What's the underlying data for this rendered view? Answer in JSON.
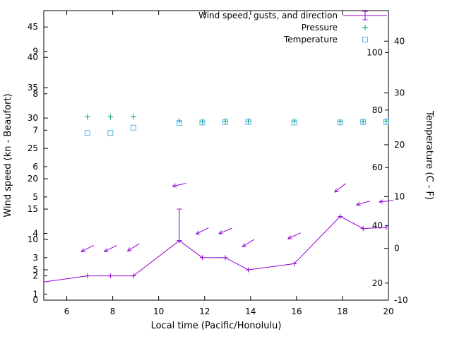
{
  "chart_data": {
    "type": "line",
    "title": "",
    "legend": [
      {
        "label": "Wind speed, gusts, and direction",
        "series": "wind",
        "sample": "line-errorbar"
      },
      {
        "label": "Pressure",
        "series": "pressure",
        "sample": "plus"
      },
      {
        "label": "Temperature",
        "series": "temperature",
        "sample": "open-square"
      }
    ],
    "x_axis": {
      "label": "Local time (Pacific/Honolulu)",
      "min": 5,
      "max": 20,
      "ticks": [
        6,
        8,
        10,
        12,
        14,
        16,
        18,
        20
      ]
    },
    "y_left": {
      "label": "Wind speed (kn - Beaufort)",
      "min": 0,
      "max": 47.7,
      "kn_ticks": [
        0,
        5,
        10,
        15,
        20,
        25,
        30,
        35,
        40,
        45
      ],
      "beaufort_ticks": [
        {
          "label": "1",
          "kn": 1
        },
        {
          "label": "2",
          "kn": 4
        },
        {
          "label": "3",
          "kn": 7
        },
        {
          "label": "4",
          "kn": 11
        },
        {
          "label": "5",
          "kn": 17
        },
        {
          "label": "6",
          "kn": 22
        },
        {
          "label": "7",
          "kn": 28
        },
        {
          "label": "8",
          "kn": 34
        },
        {
          "label": "9",
          "kn": 41
        }
      ]
    },
    "y_right": {
      "label": "Temperature (C - F)",
      "min": -10,
      "max": 45.9,
      "c_ticks": [
        -10,
        0,
        10,
        20,
        30,
        40
      ],
      "f_ticks": [
        {
          "label": "20",
          "c": -6.7
        },
        {
          "label": "40",
          "c": 4.4
        },
        {
          "label": "60",
          "c": 15.6
        },
        {
          "label": "80",
          "c": 26.7
        },
        {
          "label": "100",
          "c": 37.8
        }
      ]
    },
    "colors": {
      "wind": "#9400d3",
      "pressure": "#009e73",
      "temperature": "#56b4e9",
      "axis": "#000000",
      "background": "#ffffff"
    },
    "wind": {
      "line_start": {
        "t": 5.0,
        "kn": 3.0
      },
      "points": [
        {
          "t": 6.9,
          "kn": 4.0
        },
        {
          "t": 7.9,
          "kn": 4.0
        },
        {
          "t": 8.9,
          "kn": 4.0
        },
        {
          "t": 10.9,
          "kn": 9.8,
          "gust": 15.0
        },
        {
          "t": 11.9,
          "kn": 7.0
        },
        {
          "t": 12.9,
          "kn": 7.0
        },
        {
          "t": 13.9,
          "kn": 5.0
        },
        {
          "t": 15.9,
          "kn": 6.0
        },
        {
          "t": 17.9,
          "kn": 13.8
        },
        {
          "t": 18.9,
          "kn": 11.8
        },
        {
          "t": 19.9,
          "kn": 12.0
        }
      ],
      "arrows": [
        {
          "t": 6.9,
          "kn": 8.5,
          "angle_deg": 207
        },
        {
          "t": 7.9,
          "kn": 8.5,
          "angle_deg": 207
        },
        {
          "t": 8.9,
          "kn": 8.7,
          "angle_deg": 212
        },
        {
          "t": 10.9,
          "kn": 19.0,
          "angle_deg": 193
        },
        {
          "t": 11.9,
          "kn": 11.4,
          "angle_deg": 207
        },
        {
          "t": 12.9,
          "kn": 11.4,
          "angle_deg": 203
        },
        {
          "t": 13.9,
          "kn": 9.4,
          "angle_deg": 212
        },
        {
          "t": 15.9,
          "kn": 10.6,
          "angle_deg": 205
        },
        {
          "t": 17.9,
          "kn": 18.5,
          "angle_deg": 218
        },
        {
          "t": 18.9,
          "kn": 16.0,
          "angle_deg": 196
        },
        {
          "t": 19.9,
          "kn": 16.3,
          "angle_deg": 186
        }
      ]
    },
    "pressure_points_on_left_scale": [
      {
        "t": 6.9,
        "y_kn": 30.2
      },
      {
        "t": 7.9,
        "y_kn": 30.2
      },
      {
        "t": 8.9,
        "y_kn": 30.2
      },
      {
        "t": 10.9,
        "y_kn": 29.5
      },
      {
        "t": 11.9,
        "y_kn": 29.4
      },
      {
        "t": 12.9,
        "y_kn": 29.5
      },
      {
        "t": 13.9,
        "y_kn": 29.5
      },
      {
        "t": 15.9,
        "y_kn": 29.5
      },
      {
        "t": 17.9,
        "y_kn": 29.4
      },
      {
        "t": 18.9,
        "y_kn": 29.4
      },
      {
        "t": 19.9,
        "y_kn": 29.5
      }
    ],
    "temperature_points": [
      {
        "t": 6.9,
        "c": 22.3
      },
      {
        "t": 7.9,
        "c": 22.3
      },
      {
        "t": 8.9,
        "c": 23.3
      },
      {
        "t": 10.9,
        "c": 24.2
      },
      {
        "t": 11.9,
        "c": 24.3
      },
      {
        "t": 12.9,
        "c": 24.4
      },
      {
        "t": 13.9,
        "c": 24.4
      },
      {
        "t": 15.9,
        "c": 24.3
      },
      {
        "t": 17.9,
        "c": 24.3
      },
      {
        "t": 18.9,
        "c": 24.4
      },
      {
        "t": 19.9,
        "c": 24.4
      }
    ]
  }
}
